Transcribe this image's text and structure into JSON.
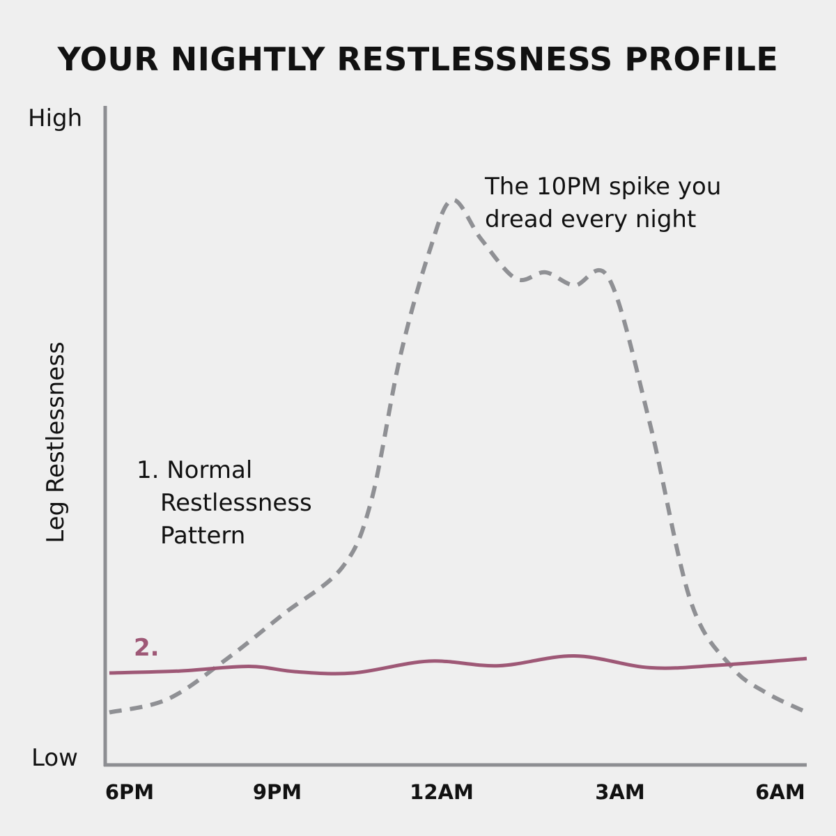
{
  "chart_data": {
    "type": "line",
    "title": "YOUR NIGHTLY RESTLESSNESS PROFILE",
    "ylabel": "Leg Restlessness",
    "y_high_label": "High",
    "y_low_label": "Low",
    "x_ticks": [
      "6PM",
      "9PM",
      "12AM",
      "3AM",
      "6AM"
    ],
    "x_range_hours": [
      0,
      12
    ],
    "y_range": [
      0,
      100
    ],
    "grid": false,
    "series": [
      {
        "name": "1. Normal Restlessness Pattern",
        "style": "dashed",
        "color": "#8f9094",
        "x": [
          0,
          1,
          2,
          3,
          4,
          4.5,
          5,
          5.5,
          5.9,
          6.4,
          7,
          7.5,
          8,
          8.6,
          9.3,
          10,
          10.7,
          11.3,
          12
        ],
        "y": [
          8,
          10,
          16,
          23,
          30,
          40,
          62,
          78,
          86,
          80,
          74,
          75,
          73,
          74,
          52,
          25,
          15,
          11,
          8
        ]
      },
      {
        "name": "2.",
        "style": "solid",
        "color": "#9e5876",
        "x": [
          0,
          1.2,
          2.4,
          3.2,
          4.2,
          5.5,
          6.7,
          8,
          9.3,
          10.5,
          12
        ],
        "y": [
          14,
          14.3,
          15,
          14.2,
          14,
          15.8,
          15.1,
          16.6,
          14.8,
          15.2,
          16.2
        ]
      }
    ],
    "annotations": {
      "spike_line1": "The 10PM spike you",
      "spike_line2": "dread every night",
      "normal_line1": "1. Normal",
      "normal_line2": "Restlessness",
      "normal_line3": "Pattern",
      "series2_label": "2."
    }
  }
}
